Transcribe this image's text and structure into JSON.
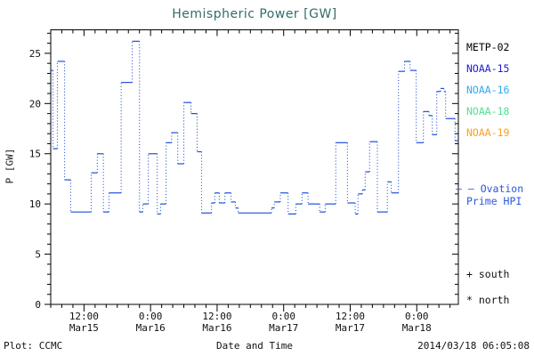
{
  "title": "Hemispheric Power [GW]",
  "legend": {
    "satellites": [
      {
        "label": "METP-02",
        "color": "#000000"
      },
      {
        "label": "NOAA-15",
        "color": "#1b1bd0"
      },
      {
        "label": "NOAA-16",
        "color": "#31a8ee"
      },
      {
        "label": "NOAA-18",
        "color": "#52e093"
      },
      {
        "label": "NOAA-19",
        "color": "#ffa018"
      }
    ],
    "ovation_line1": "– – Ovation",
    "ovation_line2": "Prime HPI",
    "ovation_color": "#2a58e0",
    "south_label": "+ south",
    "north_label": "* north"
  },
  "footer": {
    "left": "Plot: CCMC",
    "center": "Date and Time",
    "right": "2014/03/18 06:05:08"
  },
  "chart_data": {
    "type": "line",
    "style": "step-post-dotted",
    "title": "Hemispheric Power [GW]",
    "xlabel": "Date and Time",
    "ylabel": "P [GW]",
    "line_color": "#1f4fd6",
    "axis_color": "#000000",
    "grid": false,
    "ylim": [
      0,
      27.34
    ],
    "y_major_ticks": [
      0,
      5,
      10,
      15,
      20,
      25
    ],
    "y_minor_step": 1,
    "xlim_hours_from_mar15_00": [
      6,
      79.5
    ],
    "x_minor_step_hours": 2,
    "x_major_ticks": [
      {
        "t": 12,
        "time": "12:00",
        "date": "Mar15"
      },
      {
        "t": 24,
        "time": "0:00",
        "date": "Mar16"
      },
      {
        "t": 36,
        "time": "12:00",
        "date": "Mar16"
      },
      {
        "t": 48,
        "time": "0:00",
        "date": "Mar17"
      },
      {
        "t": 60,
        "time": "12:00",
        "date": "Mar17"
      },
      {
        "t": 72,
        "time": "0:00",
        "date": "Mar18"
      }
    ],
    "steps_t_hours_value_gw": [
      [
        6.0,
        23.3
      ],
      [
        6.4,
        15.5
      ],
      [
        7.2,
        24.2
      ],
      [
        8.5,
        12.4
      ],
      [
        9.6,
        9.2
      ],
      [
        13.3,
        13.1
      ],
      [
        14.4,
        15.0
      ],
      [
        15.5,
        9.2
      ],
      [
        16.5,
        11.1
      ],
      [
        18.7,
        22.1
      ],
      [
        20.7,
        26.2
      ],
      [
        22.0,
        9.2
      ],
      [
        22.6,
        10.0
      ],
      [
        23.6,
        15.0
      ],
      [
        25.2,
        9.0
      ],
      [
        25.8,
        10.0
      ],
      [
        26.8,
        16.1
      ],
      [
        27.8,
        17.1
      ],
      [
        28.9,
        14.0
      ],
      [
        30.0,
        20.1
      ],
      [
        31.3,
        19.0
      ],
      [
        32.4,
        15.2
      ],
      [
        33.2,
        9.1
      ],
      [
        35.0,
        10.1
      ],
      [
        35.6,
        11.1
      ],
      [
        36.4,
        10.1
      ],
      [
        37.4,
        11.1
      ],
      [
        38.5,
        10.2
      ],
      [
        39.3,
        9.6
      ],
      [
        39.8,
        9.1
      ],
      [
        45.8,
        9.6
      ],
      [
        46.3,
        10.2
      ],
      [
        47.4,
        11.1
      ],
      [
        48.8,
        9.0
      ],
      [
        50.2,
        10.0
      ],
      [
        51.3,
        11.1
      ],
      [
        52.4,
        10.0
      ],
      [
        54.5,
        9.2
      ],
      [
        55.5,
        10.0
      ],
      [
        57.4,
        16.1
      ],
      [
        59.5,
        10.1
      ],
      [
        60.9,
        9.0
      ],
      [
        61.4,
        11.0
      ],
      [
        62.2,
        11.4
      ],
      [
        62.7,
        13.2
      ],
      [
        63.5,
        16.2
      ],
      [
        64.9,
        9.2
      ],
      [
        66.7,
        12.2
      ],
      [
        67.4,
        11.1
      ],
      [
        68.7,
        23.2
      ],
      [
        69.8,
        24.2
      ],
      [
        70.8,
        23.3
      ],
      [
        71.9,
        16.1
      ],
      [
        73.2,
        19.2
      ],
      [
        74.2,
        18.8
      ],
      [
        74.8,
        16.9
      ],
      [
        75.6,
        21.2
      ],
      [
        76.3,
        21.5
      ],
      [
        76.9,
        21.2
      ],
      [
        77.2,
        18.5
      ],
      [
        78.9,
        16.3
      ]
    ]
  }
}
